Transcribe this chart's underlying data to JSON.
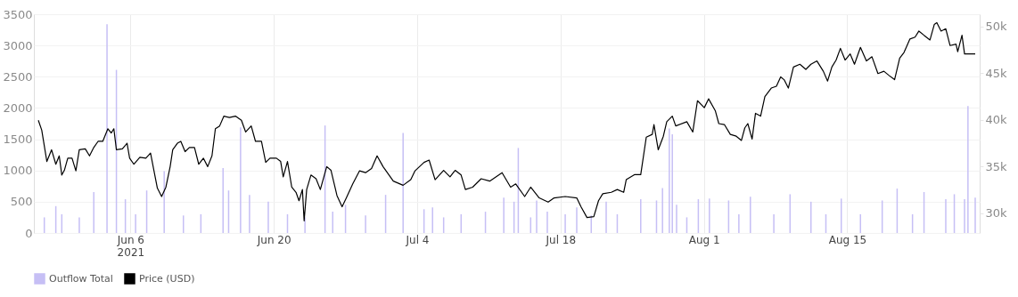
{
  "chart_data": {
    "type": "bar",
    "legend": "bottom",
    "grid": true,
    "xlim": [
      "2021-05-28T00:00",
      "2021-08-27T12:00"
    ],
    "xticks": [
      {
        "value": "2021-06-06",
        "label": "Jun 6\n2021"
      },
      {
        "value": "2021-06-20",
        "label": "Jun 20"
      },
      {
        "value": "2021-07-04",
        "label": "Jul 4"
      },
      {
        "value": "2021-07-18",
        "label": "Jul 18"
      },
      {
        "value": "2021-08-01",
        "label": "Aug 1"
      },
      {
        "value": "2021-08-15",
        "label": "Aug 15"
      }
    ],
    "ylim": [
      0,
      3500
    ],
    "yticks": [
      0,
      500,
      1000,
      1500,
      2000,
      2500,
      3000,
      3500
    ],
    "y2lim": [
      27900,
      51300
    ],
    "y2ticks": [
      {
        "value": 30000,
        "label": "30k"
      },
      {
        "value": 35000,
        "label": "35k"
      },
      {
        "value": 40000,
        "label": "40k"
      },
      {
        "value": 45000,
        "label": "45k"
      },
      {
        "value": 50000,
        "label": "50k"
      }
    ],
    "series": [
      {
        "name": "Outflow Total",
        "color": "#c6bff5",
        "x": [
          "2021-05-28T14:00",
          "2021-05-29T17:00",
          "2021-05-30T07:00",
          "2021-06-01T00:00",
          "2021-06-02T10:00",
          "2021-06-03T17:00",
          "2021-06-04T15:00",
          "2021-06-05T12:00",
          "2021-06-06T12:00",
          "2021-06-07T14:00",
          "2021-06-09T07:00",
          "2021-06-11T04:00",
          "2021-06-12T21:00",
          "2021-06-15T01:00",
          "2021-06-15T14:00",
          "2021-06-16T18:00",
          "2021-06-17T15:00",
          "2021-06-19T11:00",
          "2021-06-21T08:00",
          "2021-06-23T01:00",
          "2021-06-25T00:00",
          "2021-06-25T18:00",
          "2021-06-27T00:00",
          "2021-06-28T23:00",
          "2021-06-30T22:00",
          "2021-07-02T15:00",
          "2021-07-04T16:00",
          "2021-07-05T12:00",
          "2021-07-06T14:00",
          "2021-07-08T07:00",
          "2021-07-10T16:00",
          "2021-07-12T11:00",
          "2021-07-13T11:00",
          "2021-07-13T21:00",
          "2021-07-15T02:00",
          "2021-07-15T16:00",
          "2021-07-16T17:00",
          "2021-07-18T11:00",
          "2021-07-19T14:00",
          "2021-07-21T00:00",
          "2021-07-22T11:00",
          "2021-07-23T13:00",
          "2021-07-25T20:00",
          "2021-07-27T09:00",
          "2021-07-27T23:00",
          "2021-07-28T15:00",
          "2021-07-28T22:00",
          "2021-07-29T08:00",
          "2021-07-30T08:00",
          "2021-07-31T11:00",
          "2021-08-01T13:00",
          "2021-08-03T10:00",
          "2021-08-04T10:00",
          "2021-08-05T13:00",
          "2021-08-07T20:00",
          "2021-08-09T10:00",
          "2021-08-11T11:00",
          "2021-08-12T22:00",
          "2021-08-14T10:00",
          "2021-08-16T07:00",
          "2021-08-18T10:00",
          "2021-08-19T21:00",
          "2021-08-21T09:00",
          "2021-08-22T12:00",
          "2021-08-24T15:00",
          "2021-08-25T11:00",
          "2021-08-26T11:00",
          "2021-08-26T19:00",
          "2021-08-27T12:00"
        ],
        "values": [
          250,
          430,
          300,
          250,
          655,
          3340,
          2610,
          540,
          300,
          680,
          990,
          280,
          300,
          1040,
          680,
          1690,
          610,
          500,
          300,
          250,
          1720,
          340,
          450,
          280,
          610,
          1600,
          380,
          410,
          250,
          300,
          340,
          565,
          500,
          1360,
          250,
          520,
          340,
          300,
          410,
          280,
          500,
          300,
          540,
          520,
          720,
          1670,
          1580,
          450,
          250,
          540,
          550,
          520,
          300,
          580,
          300,
          620,
          500,
          300,
          550,
          300,
          520,
          710,
          300,
          655,
          540,
          620,
          540,
          2030,
          565
        ]
      },
      {
        "name": "Price (USD)",
        "type": "line",
        "axis": "y2",
        "color": "#000000",
        "x": [
          "2021-05-28T00:00",
          "2021-05-28T08:00",
          "2021-05-28T20:00",
          "2021-05-29T07:00",
          "2021-05-29T17:00",
          "2021-05-30T01:00",
          "2021-05-30T07:00",
          "2021-05-30T13:00",
          "2021-05-30T21:00",
          "2021-05-31T07:00",
          "2021-05-31T16:00",
          "2021-06-01T00:00",
          "2021-06-01T14:00",
          "2021-06-02T00:00",
          "2021-06-02T10:00",
          "2021-06-02T20:00",
          "2021-06-03T07:00",
          "2021-06-03T19:00",
          "2021-06-04T03:00",
          "2021-06-04T09:00",
          "2021-06-04T15:00",
          "2021-06-05T05:00",
          "2021-06-05T16:00",
          "2021-06-05T22:00",
          "2021-06-06T08:00",
          "2021-06-06T22:00",
          "2021-06-07T12:00",
          "2021-06-07T23:00",
          "2021-06-08T09:00",
          "2021-06-08T15:00",
          "2021-06-09T01:00",
          "2021-06-09T11:00",
          "2021-06-09T21:00",
          "2021-06-10T03:00",
          "2021-06-10T14:00",
          "2021-06-10T22:00",
          "2021-06-11T08:00",
          "2021-06-11T18:00",
          "2021-06-12T06:00",
          "2021-06-12T16:00",
          "2021-06-13T03:00",
          "2021-06-13T13:00",
          "2021-06-13T23:00",
          "2021-06-14T07:00",
          "2021-06-14T17:00",
          "2021-06-15T03:00",
          "2021-06-15T16:00",
          "2021-06-16T06:00",
          "2021-06-16T20:00",
          "2021-06-17T06:00",
          "2021-06-17T19:00",
          "2021-06-18T05:00",
          "2021-06-18T19:00",
          "2021-06-19T05:00",
          "2021-06-19T15:00",
          "2021-06-20T06:00",
          "2021-06-20T16:00",
          "2021-06-20T22:00",
          "2021-06-21T08:00",
          "2021-06-21T18:00",
          "2021-06-22T04:00",
          "2021-06-22T11:00",
          "2021-06-22T19:00",
          "2021-06-22T23:00",
          "2021-06-23T05:00",
          "2021-06-23T15:00",
          "2021-06-24T03:00",
          "2021-06-24T13:00",
          "2021-06-25T04:00",
          "2021-06-25T14:00",
          "2021-06-26T04:00",
          "2021-06-26T16:00",
          "2021-06-27T02:00",
          "2021-06-27T17:00",
          "2021-06-28T09:00",
          "2021-06-28T23:00",
          "2021-06-29T13:00",
          "2021-06-30T02:00",
          "2021-06-30T16:00",
          "2021-07-01T16:00",
          "2021-07-02T15:00",
          "2021-07-03T09:00",
          "2021-07-03T19:00",
          "2021-07-04T16:00",
          "2021-07-05T04:00",
          "2021-07-05T18:00",
          "2021-07-06T14:00",
          "2021-07-07T05:00",
          "2021-07-07T17:00",
          "2021-07-08T07:00",
          "2021-07-08T17:00",
          "2021-07-09T10:00",
          "2021-07-10T06:00",
          "2021-07-11T02:00",
          "2021-07-12T07:00",
          "2021-07-13T03:00",
          "2021-07-13T15:00",
          "2021-07-14T12:00",
          "2021-07-15T02:00",
          "2021-07-15T22:00",
          "2021-07-16T19:00",
          "2021-07-17T09:00",
          "2021-07-18T11:00",
          "2021-07-19T14:00",
          "2021-07-20T00:00",
          "2021-07-20T14:00",
          "2021-07-21T06:00",
          "2021-07-21T17:00",
          "2021-07-22T03:00",
          "2021-07-22T23:00",
          "2021-07-23T13:00",
          "2021-07-24T04:00",
          "2021-07-24T10:00",
          "2021-07-25T06:00",
          "2021-07-25T20:00",
          "2021-07-26T09:00",
          "2021-07-26T23:00",
          "2021-07-27T03:00",
          "2021-07-27T13:00",
          "2021-07-28T01:00",
          "2021-07-28T09:00",
          "2021-07-28T22:00",
          "2021-07-29T06:00",
          "2021-07-30T08:00",
          "2021-07-30T22:00",
          "2021-07-31T09:00",
          "2021-08-01T01:00",
          "2021-08-01T11:00",
          "2021-08-02T03:00",
          "2021-08-02T11:00",
          "2021-08-03T00:00",
          "2021-08-03T14:00",
          "2021-08-04T04:00",
          "2021-08-04T16:00",
          "2021-08-05T00:00",
          "2021-08-05T07:00",
          "2021-08-05T17:00",
          "2021-08-06T01:00",
          "2021-08-06T13:00",
          "2021-08-06T23:00",
          "2021-08-07T14:00",
          "2021-08-08T02:00",
          "2021-08-08T12:00",
          "2021-08-08T20:00",
          "2021-08-09T06:00",
          "2021-08-09T18:00",
          "2021-08-10T09:00",
          "2021-08-10T23:00",
          "2021-08-11T11:00",
          "2021-08-12T01:00",
          "2021-08-12T16:00",
          "2021-08-13T02:00",
          "2021-08-13T12:00",
          "2021-08-13T22:00",
          "2021-08-14T08:00",
          "2021-08-14T19:00",
          "2021-08-15T07:00",
          "2021-08-15T17:00",
          "2021-08-16T07:00",
          "2021-08-16T21:00",
          "2021-08-17T10:00",
          "2021-08-18T00:00",
          "2021-08-18T14:00",
          "2021-08-19T02:00",
          "2021-08-19T15:00",
          "2021-08-20T03:00",
          "2021-08-20T13:00",
          "2021-08-21T03:00",
          "2021-08-21T15:00",
          "2021-08-22T00:00",
          "2021-08-22T12:00",
          "2021-08-23T02:00",
          "2021-08-23T12:00",
          "2021-08-23T18:00",
          "2021-08-24T04:00",
          "2021-08-24T15:00",
          "2021-08-25T01:00",
          "2021-08-25T15:00",
          "2021-08-25T19:00",
          "2021-08-26T05:00",
          "2021-08-26T11:00",
          "2021-08-27T02:00",
          "2021-08-27T12:00"
        ],
        "values": [
          39950,
          38900,
          35550,
          36800,
          35250,
          36150,
          34100,
          34600,
          35900,
          35900,
          34550,
          36800,
          36900,
          36150,
          37050,
          37700,
          37700,
          39050,
          38600,
          39050,
          36800,
          36900,
          37500,
          35900,
          35250,
          36000,
          35900,
          36450,
          34100,
          32700,
          31800,
          32800,
          35000,
          36800,
          37500,
          37700,
          36600,
          37050,
          37050,
          35250,
          35900,
          35000,
          36150,
          39050,
          39350,
          40400,
          40250,
          40400,
          39950,
          38700,
          39350,
          37700,
          37700,
          35450,
          35900,
          35900,
          35550,
          33900,
          35550,
          32800,
          32250,
          31350,
          32550,
          29200,
          32550,
          34100,
          33700,
          32550,
          35000,
          34600,
          31900,
          30700,
          31650,
          33150,
          34550,
          34350,
          34800,
          36150,
          35000,
          33450,
          33000,
          33600,
          34550,
          35450,
          35700,
          33600,
          34600,
          33900,
          34600,
          34100,
          32550,
          32800,
          33700,
          33450,
          34350,
          32800,
          33150,
          31800,
          32800,
          31650,
          31200,
          31650,
          31800,
          31650,
          30700,
          29550,
          29650,
          31350,
          32100,
          32250,
          32550,
          32250,
          33600,
          34150,
          34150,
          38150,
          38450,
          39500,
          36800,
          38250,
          39800,
          40400,
          39350,
          39800,
          38700,
          42050,
          41300,
          42250,
          40950,
          39600,
          39500,
          38450,
          38250,
          37800,
          39150,
          39600,
          37950,
          40700,
          40400,
          42500,
          43400,
          43600,
          44600,
          44300,
          43400,
          45650,
          45950,
          45400,
          45950,
          46300,
          45200,
          44150,
          45650,
          46400,
          47650,
          46400,
          47050,
          45950,
          47750,
          46300,
          46750,
          44950,
          45200,
          44750,
          44300,
          46600,
          47200,
          48650,
          48850,
          49500,
          49050,
          48550,
          50200,
          50400,
          49500,
          49750,
          47950,
          48100,
          47300,
          49050,
          47050,
          47050,
          47050
        ]
      }
    ]
  }
}
